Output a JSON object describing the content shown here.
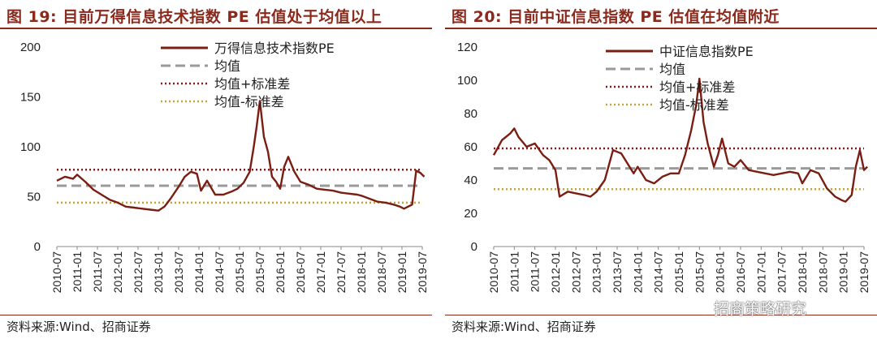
{
  "panels": [
    {
      "id": "left",
      "title": "图 19:  目前万得信息技术指数 PE 估值处于均值以上",
      "source": "资料来源:Wind、招商证券"
    },
    {
      "id": "right",
      "title": "图 20:  目前中证信息指数 PE 估值在均值附近",
      "source": "资料来源:Wind、招商证券"
    }
  ],
  "watermark": "招商策略研究",
  "colors": {
    "series": "#7a1d12",
    "mean": "#9a9a9a",
    "plus_sd": "#8b1a1a",
    "minus_sd": "#c8a23a",
    "accent": "#8b2a1c"
  },
  "chart_data": [
    {
      "type": "line",
      "ylim": [
        0,
        200
      ],
      "yticks": [
        0,
        50,
        100,
        150,
        200
      ],
      "xticks": [
        "2010-07",
        "2011-01",
        "2011-07",
        "2012-01",
        "2012-07",
        "2013-01",
        "2013-07",
        "2014-01",
        "2014-07",
        "2015-01",
        "2015-07",
        "2016-01",
        "2016-07",
        "2017-01",
        "2017-07",
        "2018-01",
        "2018-07",
        "2019-01",
        "2019-07"
      ],
      "series": [
        {
          "name": "万得信息技术指数PE",
          "style": "line",
          "x": [
            2010.5,
            2010.7,
            2010.9,
            2011.0,
            2011.2,
            2011.4,
            2011.6,
            2011.8,
            2012.0,
            2012.2,
            2012.4,
            2012.6,
            2012.8,
            2013.0,
            2013.15,
            2013.3,
            2013.5,
            2013.65,
            2013.8,
            2013.95,
            2014.05,
            2014.2,
            2014.4,
            2014.6,
            2014.8,
            2014.95,
            2015.1,
            2015.25,
            2015.35,
            2015.42,
            2015.5,
            2015.6,
            2015.7,
            2015.8,
            2015.9,
            2016.0,
            2016.1,
            2016.2,
            2016.35,
            2016.5,
            2016.7,
            2016.9,
            2017.1,
            2017.3,
            2017.5,
            2017.7,
            2017.9,
            2018.0,
            2018.2,
            2018.4,
            2018.6,
            2018.8,
            2018.95,
            2019.05,
            2019.15,
            2019.25,
            2019.35,
            2019.45,
            2019.55
          ],
          "values": [
            66,
            70,
            68,
            72,
            65,
            57,
            52,
            47,
            44,
            40,
            39,
            38,
            37,
            36,
            40,
            48,
            60,
            70,
            75,
            73,
            56,
            66,
            52,
            52,
            55,
            58,
            64,
            75,
            100,
            120,
            146,
            110,
            95,
            70,
            65,
            58,
            80,
            90,
            75,
            65,
            62,
            58,
            57,
            56,
            54,
            53,
            52,
            51,
            48,
            45,
            44,
            42,
            40,
            38,
            40,
            42,
            76,
            74,
            70
          ]
        },
        {
          "name": "均值",
          "style": "dashed",
          "value": 61
        },
        {
          "name": "均值+标准差",
          "style": "dotted",
          "value": 77
        },
        {
          "name": "均值-标准差",
          "style": "dotted",
          "value": 44
        }
      ],
      "legend": "top-center"
    },
    {
      "type": "line",
      "ylim": [
        0,
        120
      ],
      "yticks": [
        0,
        20,
        40,
        60,
        80,
        100,
        120
      ],
      "xticks": [
        "2010-07",
        "2011-01",
        "2011-07",
        "2012-01",
        "2012-07",
        "2013-01",
        "2013-07",
        "2014-01",
        "2014-07",
        "2015-01",
        "2015-07",
        "2016-01",
        "2016-07",
        "2017-01",
        "2017-07",
        "2018-01",
        "2018-07",
        "2019-01",
        "2019-07"
      ],
      "series": [
        {
          "name": "中证信息指数PE",
          "style": "line",
          "x": [
            2010.5,
            2010.7,
            2010.9,
            2011.0,
            2011.1,
            2011.3,
            2011.5,
            2011.7,
            2011.85,
            2012.0,
            2012.1,
            2012.3,
            2012.5,
            2012.7,
            2012.85,
            2013.0,
            2013.2,
            2013.4,
            2013.6,
            2013.75,
            2013.9,
            2014.0,
            2014.2,
            2014.4,
            2014.6,
            2014.8,
            2015.0,
            2015.15,
            2015.3,
            2015.42,
            2015.5,
            2015.6,
            2015.7,
            2015.85,
            2015.95,
            2016.05,
            2016.2,
            2016.35,
            2016.5,
            2016.7,
            2016.9,
            2017.1,
            2017.3,
            2017.5,
            2017.7,
            2017.9,
            2018.0,
            2018.2,
            2018.4,
            2018.6,
            2018.8,
            2018.95,
            2019.05,
            2019.2,
            2019.3,
            2019.4,
            2019.5,
            2019.58
          ],
          "values": [
            55,
            64,
            68,
            71,
            66,
            60,
            62,
            55,
            52,
            46,
            30,
            33,
            32,
            31,
            30,
            33,
            40,
            58,
            56,
            50,
            44,
            48,
            40,
            38,
            42,
            44,
            44,
            55,
            70,
            85,
            101,
            75,
            62,
            48,
            55,
            65,
            50,
            48,
            52,
            46,
            45,
            44,
            43,
            44,
            45,
            44,
            38,
            46,
            44,
            35,
            30,
            28,
            27,
            31,
            48,
            58,
            46,
            48
          ]
        },
        {
          "name": "均值",
          "style": "dashed",
          "value": 47
        },
        {
          "name": "均值+标准差",
          "style": "dotted",
          "value": 59
        },
        {
          "name": "均值-标准差",
          "style": "dotted",
          "value": 34.5
        }
      ],
      "legend": "top-center"
    }
  ]
}
